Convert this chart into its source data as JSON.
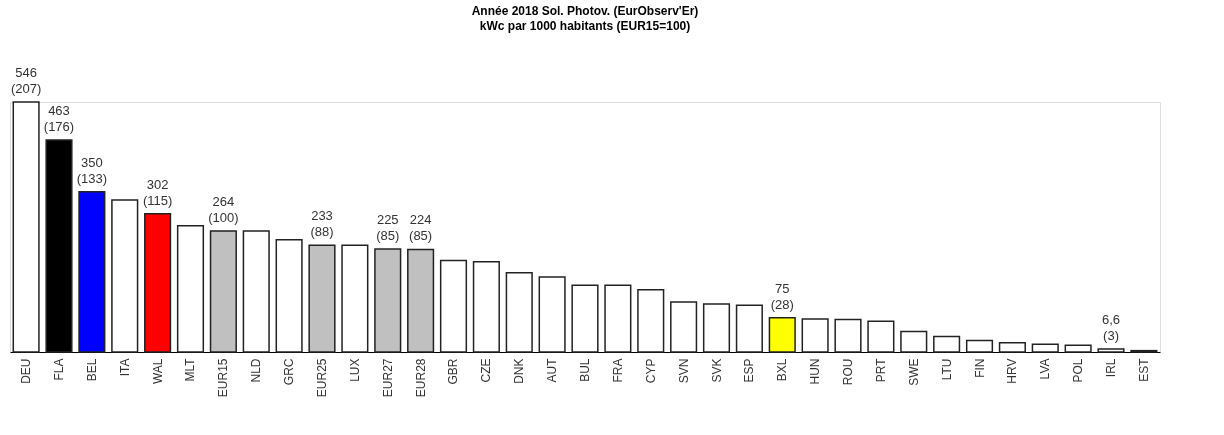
{
  "chart_data": {
    "type": "bar",
    "title": "Année 2018 Sol. Photov. (EurObserv'Er)",
    "subtitle": "kWc par 1000 habitants (EUR15=100)",
    "categories": [
      "DEU",
      "FLA",
      "BEL",
      "ITA",
      "WAL",
      "MLT",
      "EUR15",
      "NLD",
      "GRC",
      "EUR25",
      "LUX",
      "EUR27",
      "EUR28",
      "GBR",
      "CZE",
      "DNK",
      "AUT",
      "BUL",
      "FRA",
      "CYP",
      "SVN",
      "SVK",
      "ESP",
      "BXL",
      "HUN",
      "ROU",
      "PRT",
      "SWE",
      "LTU",
      "FIN",
      "HRV",
      "LVA",
      "POL",
      "IRL",
      "EST"
    ],
    "values": [
      546,
      463,
      350,
      332,
      302,
      276,
      264,
      264,
      245,
      233,
      233,
      225,
      224,
      200,
      197,
      173,
      164,
      146,
      146,
      136,
      109,
      105,
      102,
      75,
      72,
      71,
      67,
      45,
      34,
      25,
      20,
      17,
      15,
      6.6,
      3
    ],
    "colors": [
      "#ffffff",
      "#000000",
      "#0000ff",
      "#ffffff",
      "#ff0000",
      "#ffffff",
      "#c0c0c0",
      "#ffffff",
      "#ffffff",
      "#c0c0c0",
      "#ffffff",
      "#c0c0c0",
      "#c0c0c0",
      "#ffffff",
      "#ffffff",
      "#ffffff",
      "#ffffff",
      "#ffffff",
      "#ffffff",
      "#ffffff",
      "#ffffff",
      "#ffffff",
      "#ffffff",
      "#ffff00",
      "#ffffff",
      "#ffffff",
      "#ffffff",
      "#ffffff",
      "#ffffff",
      "#ffffff",
      "#ffffff",
      "#ffffff",
      "#ffffff",
      "#ffffff",
      "#ffffff"
    ],
    "value_labels": [
      "546\n(207)",
      "463\n(176)",
      "350\n(133)",
      null,
      "302\n(115)",
      null,
      "264\n(100)",
      null,
      null,
      "233\n(88)",
      null,
      "225\n(85)",
      "224\n(85)",
      null,
      null,
      null,
      null,
      null,
      null,
      null,
      null,
      null,
      null,
      "75\n(28)",
      null,
      null,
      null,
      null,
      null,
      null,
      null,
      null,
      null,
      "6,6\n(3)",
      null
    ],
    "grid": false
  }
}
